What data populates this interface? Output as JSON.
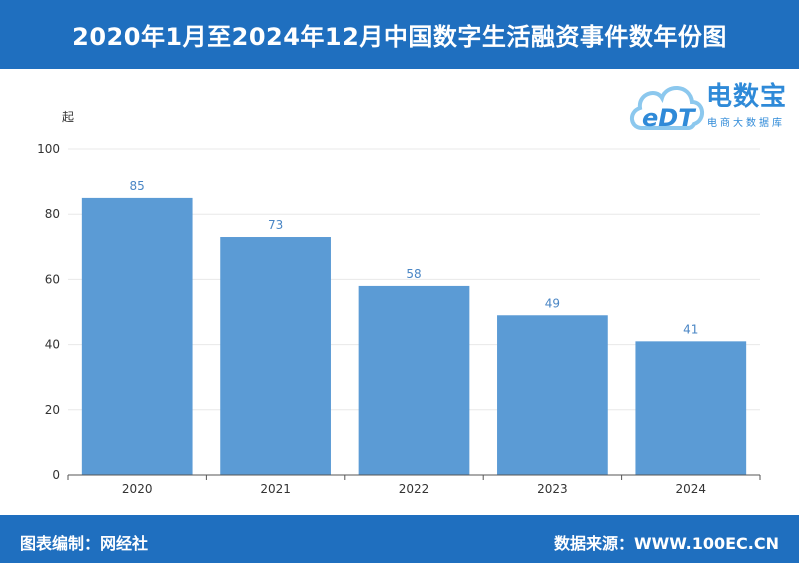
{
  "header": {
    "title": "2020年1月至2024年12月中国数字生活融资事件数年份图"
  },
  "logo": {
    "name": "电数宝",
    "subtitle": "电商大数据库",
    "mark": "eDT"
  },
  "footer": {
    "editor": "图表编制：网经社",
    "source": "数据来源：WWW.100EC.CN"
  },
  "chart_data": {
    "type": "bar",
    "title": "2020年1月至2024年12月中国数字生活融资事件数年份图",
    "xlabel": "",
    "ylabel": "起",
    "categories": [
      "2020",
      "2021",
      "2022",
      "2023",
      "2024"
    ],
    "values": [
      85,
      73,
      58,
      49,
      41
    ],
    "ylim": [
      0,
      100
    ],
    "yticks": [
      0,
      20,
      40,
      60,
      80,
      100
    ],
    "grid": true,
    "data_labels": true,
    "colors": {
      "bar": "#5b9bd5",
      "label": "#4a86c5",
      "axis": "#555555",
      "grid": "#e8e8e8"
    }
  }
}
